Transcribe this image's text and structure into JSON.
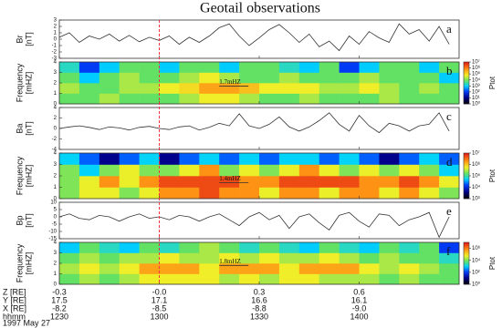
{
  "title": "Geotail observations",
  "time_axis": {
    "xlim": [
      750,
      870
    ],
    "ticks": [
      {
        "value": 750,
        "label": "1230"
      },
      {
        "value": 780,
        "label": "1300"
      },
      {
        "value": 810,
        "label": "1330"
      },
      {
        "value": 840,
        "label": "1400"
      }
    ],
    "marker": {
      "x": 780,
      "color": "#ff3040"
    }
  },
  "chart_data": [
    {
      "type": "line",
      "label": "a",
      "ylabel": [
        "Br",
        "[nT]"
      ],
      "ylim": [
        -3,
        3
      ],
      "yticks": [
        -3,
        -2,
        -1,
        0,
        1,
        2,
        3
      ],
      "color": "#333333",
      "x": [
        750,
        753,
        756,
        759,
        762,
        765,
        768,
        771,
        774,
        777,
        780,
        783,
        786,
        789,
        792,
        795,
        798,
        801,
        804,
        807,
        810,
        813,
        816,
        819,
        822,
        825,
        828,
        831,
        834,
        837,
        840,
        843,
        846,
        849,
        852,
        855,
        858,
        861,
        864,
        867
      ],
      "values": [
        0.3,
        1.0,
        -0.5,
        0.5,
        0.0,
        0.8,
        -0.3,
        0.6,
        -0.4,
        0.3,
        -0.2,
        0.5,
        -0.8,
        0.3,
        -0.5,
        0.5,
        1.8,
        2.4,
        0.5,
        -1.0,
        0.2,
        1.5,
        2.3,
        1.0,
        -0.5,
        0.8,
        -1.2,
        -0.3,
        -1.8,
        0.5,
        -0.8,
        1.2,
        0.2,
        -0.5,
        2.4,
        0.8,
        1.5,
        -0.3,
        2.0,
        -0.8
      ]
    },
    {
      "type": "heatmap",
      "label": "b",
      "ylabel": [
        "Frequency",
        "[mHZ]"
      ],
      "ylim": [
        0,
        4
      ],
      "yticks": [
        0,
        1,
        2,
        3,
        4
      ],
      "x_edges": [
        750,
        756,
        762,
        768,
        774,
        780,
        786,
        792,
        798,
        804,
        810,
        816,
        822,
        828,
        834,
        840,
        846,
        852,
        858,
        864,
        870
      ],
      "y_edges": [
        0,
        1,
        2,
        3,
        4
      ],
      "z": [
        [
          7000.0,
          7000.0,
          20000.0,
          7000.0,
          7000.0,
          7000.0,
          20000.0,
          60000.0,
          60000.0,
          20000.0,
          7000.0,
          7000.0,
          20000.0,
          7000.0,
          7000.0,
          7000.0,
          20000.0,
          7000.0,
          7000.0,
          7000.0
        ],
        [
          20000.0,
          7000.0,
          7000.0,
          20000.0,
          20000.0,
          60000.0,
          100000.0,
          400000.0,
          400000.0,
          200000.0,
          60000.0,
          60000.0,
          60000.0,
          20000.0,
          20000.0,
          60000.0,
          20000.0,
          7000.0,
          20000.0,
          7000.0
        ],
        [
          7000.0,
          800.0,
          7000.0,
          20000.0,
          7000.0,
          7000.0,
          20000.0,
          60000.0,
          20000.0,
          7000.0,
          7000.0,
          20000.0,
          7000.0,
          7000.0,
          7000.0,
          20000.0,
          7000.0,
          7000.0,
          7000.0,
          800.0
        ],
        [
          2000.0,
          100.0,
          800.0,
          7000.0,
          7000.0,
          800.0,
          7000.0,
          7000.0,
          800.0,
          7000.0,
          7000.0,
          2000.0,
          800.0,
          7000.0,
          100.0,
          800.0,
          7000.0,
          7000.0,
          800.0,
          7000.0
        ]
      ],
      "clim": [
        1,
        10000000.0
      ],
      "log_color": true,
      "colormap": "jet",
      "cticks": [
        {
          "value": 1,
          "label": "10⁰"
        },
        {
          "value": 10,
          "label": "10¹"
        },
        {
          "value": 100,
          "label": "10²"
        },
        {
          "value": 1000,
          "label": "10³"
        },
        {
          "value": 10000,
          "label": "10⁴"
        },
        {
          "value": 100000,
          "label": "10⁵"
        },
        {
          "value": 1000000,
          "label": "10⁶"
        },
        {
          "value": 10000000,
          "label": "10⁷"
        }
      ],
      "colorbar_label": "Ptot",
      "annotation": {
        "text": "1.7mHZ",
        "value": 1.7
      }
    },
    {
      "type": "line",
      "label": "c",
      "ylabel": [
        "Ba",
        "[nT]"
      ],
      "ylim": [
        -4,
        4
      ],
      "yticks": [
        -4,
        -2,
        0,
        2,
        4
      ],
      "color": "#333333",
      "x": [
        750,
        753,
        756,
        759,
        762,
        765,
        768,
        771,
        774,
        777,
        780,
        783,
        786,
        789,
        792,
        795,
        798,
        801,
        804,
        807,
        810,
        813,
        816,
        819,
        822,
        825,
        828,
        831,
        834,
        837,
        840,
        843,
        846,
        849,
        852,
        855,
        858,
        861,
        864,
        867
      ],
      "values": [
        0,
        0.3,
        0.5,
        0.2,
        -0.2,
        0.3,
        0.1,
        -0.3,
        0.2,
        0.4,
        0,
        -0.2,
        0.3,
        0.5,
        -0.3,
        0.2,
        1.0,
        0.5,
        2.8,
        0.5,
        0.0,
        0.8,
        2.2,
        0.3,
        -0.5,
        0.3,
        1.5,
        3.0,
        0.8,
        -0.5,
        2.5,
        0.5,
        -0.8,
        1.0,
        0.5,
        -0.5,
        0.5,
        0.8,
        3.0,
        -0.5
      ]
    },
    {
      "type": "heatmap",
      "label": "d",
      "ylabel": [
        "Frequency",
        "[mHZ]"
      ],
      "ylim": [
        0,
        4
      ],
      "yticks": [
        0,
        1,
        2,
        3,
        4
      ],
      "x_edges": [
        750,
        756,
        762,
        768,
        774,
        780,
        786,
        792,
        798,
        804,
        810,
        816,
        822,
        828,
        834,
        840,
        846,
        852,
        858,
        864,
        870
      ],
      "y_edges": [
        0,
        1,
        2,
        3,
        4
      ],
      "z": [
        [
          200000.0,
          500000.0,
          500000.0,
          200000.0,
          500000.0,
          2000000.0,
          2000000.0,
          5000000.0,
          2000000.0,
          2000000.0,
          500000.0,
          2000000.0,
          2000000.0,
          500000.0,
          2000000.0,
          2000000.0,
          500000.0,
          2000000.0,
          500000.0,
          200000.0
        ],
        [
          200000.0,
          500000.0,
          2000000.0,
          500000.0,
          2000000.0,
          5000000.0,
          5000000.0,
          5000000.0,
          5000000.0,
          2000000.0,
          2000000.0,
          5000000.0,
          5000000.0,
          5000000.0,
          5000000.0,
          2000000.0,
          2000000.0,
          5000000.0,
          2000000.0,
          500000.0
        ],
        [
          200000.0,
          50000.0,
          200000.0,
          500000.0,
          200000.0,
          200000.0,
          500000.0,
          2000000.0,
          200000.0,
          500000.0,
          200000.0,
          500000.0,
          2000000.0,
          500000.0,
          200000.0,
          500000.0,
          200000.0,
          500000.0,
          200000.0,
          50000.0
        ],
        [
          50000.0,
          20000.0,
          4000.0,
          20000.0,
          50000.0,
          4000.0,
          20000.0,
          50000.0,
          20000.0,
          50000.0,
          20000.0,
          50000.0,
          50000.0,
          20000.0,
          50000.0,
          20000.0,
          4000.0,
          20000.0,
          50000.0,
          20000.0
        ]
      ],
      "clim": [
        1000,
        10000000.0
      ],
      "log_color": true,
      "colormap": "jet",
      "cticks": [
        {
          "value": 1000,
          "label": "10³"
        },
        {
          "value": 10000,
          "label": "10⁴"
        },
        {
          "value": 100000,
          "label": "10⁵"
        },
        {
          "value": 1000000,
          "label": "10⁶"
        },
        {
          "value": 10000000,
          "label": "10⁷"
        }
      ],
      "colorbar_label": "Ptot",
      "annotation": {
        "text": "1.4mHZ",
        "value": 1.4
      }
    },
    {
      "type": "line",
      "label": "e",
      "ylabel": [
        "Bp",
        "[nT]"
      ],
      "ylim": [
        -15,
        10
      ],
      "yticks": [
        -15,
        -10,
        -5,
        0,
        5,
        10
      ],
      "color": "#333333",
      "x": [
        750,
        753,
        756,
        759,
        762,
        765,
        768,
        771,
        774,
        777,
        780,
        783,
        786,
        789,
        792,
        795,
        798,
        801,
        804,
        807,
        810,
        813,
        816,
        819,
        822,
        825,
        828,
        831,
        834,
        837,
        840,
        843,
        846,
        849,
        852,
        855,
        858,
        861,
        864,
        867
      ],
      "values": [
        0,
        2,
        -1,
        -2,
        1,
        0,
        -3,
        0,
        2,
        -1,
        0,
        -2,
        1,
        0,
        -3,
        0,
        2,
        -2,
        -6,
        0,
        3,
        -2,
        1,
        -8,
        0,
        2,
        -4,
        -9,
        1,
        3,
        -3,
        -7,
        2,
        1,
        -6,
        -2,
        0,
        3,
        -14,
        0
      ]
    },
    {
      "type": "heatmap",
      "label": "f",
      "ylabel": [
        "Frequency",
        "[mHZ]"
      ],
      "ylim": [
        0,
        4
      ],
      "yticks": [
        0,
        1,
        2,
        3,
        4
      ],
      "x_edges": [
        750,
        756,
        762,
        768,
        774,
        780,
        786,
        792,
        798,
        804,
        810,
        816,
        822,
        828,
        834,
        840,
        846,
        852,
        858,
        864,
        870
      ],
      "y_edges": [
        0,
        1,
        2,
        3,
        4
      ],
      "z": [
        [
          7000.0,
          20000.0,
          7000.0,
          20000.0,
          60000.0,
          60000.0,
          60000.0,
          60000.0,
          20000.0,
          60000.0,
          20000.0,
          60000.0,
          60000.0,
          20000.0,
          20000.0,
          20000.0,
          7000.0,
          20000.0,
          7000.0,
          7000.0
        ],
        [
          20000.0,
          60000.0,
          20000.0,
          60000.0,
          400000.0,
          400000.0,
          400000.0,
          60000.0,
          400000.0,
          400000.0,
          400000.0,
          60000.0,
          400000.0,
          400000.0,
          400000.0,
          60000.0,
          20000.0,
          60000.0,
          20000.0,
          7000.0
        ],
        [
          7000.0,
          20000.0,
          7000.0,
          20000.0,
          20000.0,
          60000.0,
          20000.0,
          20000.0,
          60000.0,
          20000.0,
          60000.0,
          20000.0,
          20000.0,
          60000.0,
          20000.0,
          7000.0,
          20000.0,
          7000.0,
          7000.0,
          2000.0
        ],
        [
          800.0,
          7000.0,
          2000.0,
          800.0,
          7000.0,
          2000.0,
          7000.0,
          20000.0,
          7000.0,
          2000.0,
          7000.0,
          2000.0,
          800.0,
          7000.0,
          2000.0,
          800.0,
          7000.0,
          2000.0,
          7000.0,
          100.0
        ]
      ],
      "clim": [
        1,
        10000000.0
      ],
      "log_color": true,
      "colormap": "jet",
      "cticks": [
        {
          "value": 1,
          "label": "10⁰"
        },
        {
          "value": 100,
          "label": "10²"
        },
        {
          "value": 10000,
          "label": "10⁴"
        },
        {
          "value": 1000000,
          "label": "10⁶"
        }
      ],
      "colorbar_label": "Ptot",
      "annotation": {
        "text": "1.8mHZ",
        "value": 1.8
      }
    }
  ],
  "ephemeris": {
    "rows": [
      {
        "label": "Z [RE]",
        "values": [
          "-0.3",
          "-0.0",
          "0.3",
          "0.6"
        ]
      },
      {
        "label": "Y [RE]",
        "values": [
          "17.5",
          "17.1",
          "16.6",
          "16.1"
        ]
      },
      {
        "label": "X [RE]",
        "values": [
          "-8.2",
          "-8.5",
          "-8.8",
          "-9.0"
        ]
      }
    ],
    "time_label": "hhmm",
    "date": "1997 May 27"
  }
}
